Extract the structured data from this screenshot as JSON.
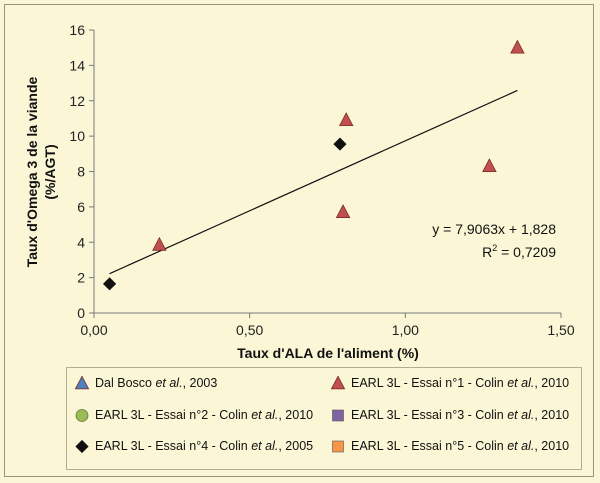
{
  "chart_data": {
    "type": "scatter",
    "xlabel": "Taux d'ALA de l'aliment (%)",
    "ylabel_line1": "Taux d'Omega 3 de la viande",
    "ylabel_line2": "(%/AGT)",
    "xlim": [
      0,
      1.5
    ],
    "ylim": [
      0,
      16
    ],
    "x_ticks": [
      0,
      0.5,
      1.0,
      1.5
    ],
    "x_tick_labels": [
      "0,00",
      "0,50",
      "1,00",
      "1,50"
    ],
    "y_ticks": [
      0,
      2,
      4,
      6,
      8,
      10,
      12,
      14,
      16
    ],
    "y_tick_labels": [
      "0",
      "2",
      "4",
      "6",
      "8",
      "10",
      "12",
      "14",
      "16"
    ],
    "grid": false,
    "legend_placement": "bottom",
    "series": [
      {
        "name_prefix": "Dal Bosco ",
        "name_italic": "et al.",
        "name_suffix": ", 2003",
        "marker": "triangle",
        "color": "#4f81bd",
        "points": []
      },
      {
        "name_prefix": "EARL 3L - Essai n°1 - Colin ",
        "name_italic": "et al.",
        "name_suffix": ", 2010",
        "marker": "triangle",
        "color": "#c0504d",
        "points": [
          [
            0.21,
            3.85
          ],
          [
            0.8,
            5.7
          ],
          [
            0.81,
            10.9
          ],
          [
            1.27,
            8.3
          ],
          [
            1.36,
            15.0
          ]
        ]
      },
      {
        "name_prefix": "EARL 3L - Essai n°2 - Colin ",
        "name_italic": "et al.",
        "name_suffix": ", 2010",
        "marker": "circle",
        "color": "#9bbb59",
        "points": []
      },
      {
        "name_prefix": "EARL 3L - Essai n°3 - Colin ",
        "name_italic": "et al.",
        "name_suffix": ", 2010",
        "marker": "square",
        "color": "#8064a2",
        "points": []
      },
      {
        "name_prefix": "EARL 3L - Essai n°4 - Colin ",
        "name_italic": "et al.",
        "name_suffix": ", 2005",
        "marker": "diamond",
        "color": "#111111",
        "points": [
          [
            0.05,
            1.65
          ],
          [
            0.79,
            9.55
          ]
        ]
      },
      {
        "name_prefix": "EARL 3L - Essai n°5 - Colin ",
        "name_italic": "et al.",
        "name_suffix": ", 2010",
        "marker": "square",
        "color": "#f79646",
        "points": []
      }
    ],
    "trendline": {
      "slope": 7.9063,
      "intercept": 1.828,
      "x_range": [
        0.05,
        1.36
      ],
      "equation": "y = 7,9063x + 1,828",
      "r2_label": "R",
      "r2_sup": "2",
      "r2_value": " = 0,7209"
    }
  }
}
